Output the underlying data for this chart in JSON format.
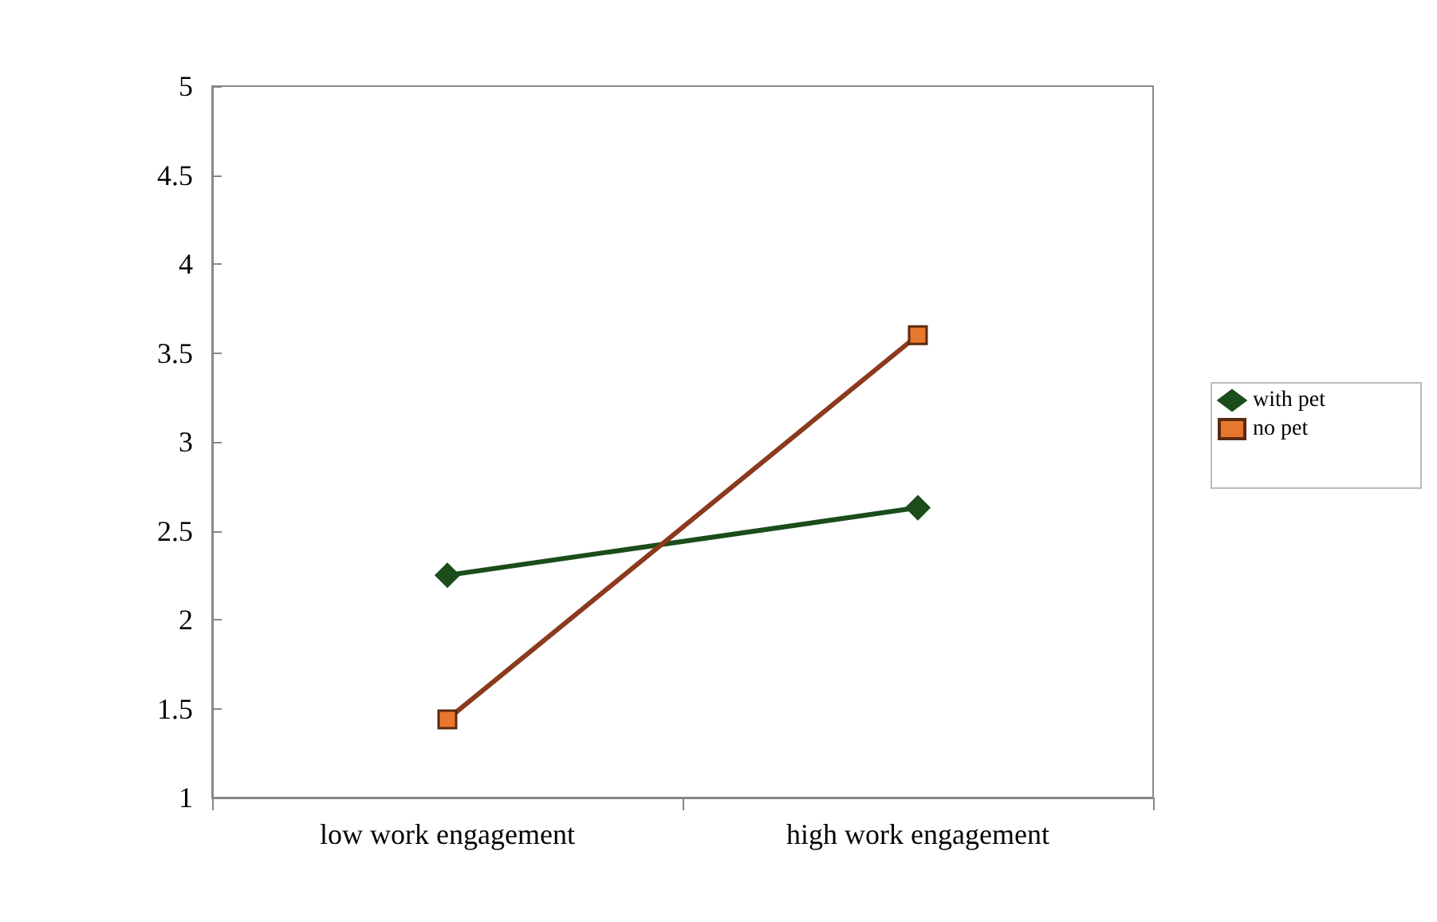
{
  "chart_data": {
    "type": "line",
    "categories": [
      "low work engagement",
      "high work engagement"
    ],
    "series": [
      {
        "name": "with pet",
        "color": "#1b4d1b",
        "marker": "diamond",
        "values": [
          2.25,
          2.63
        ]
      },
      {
        "name": "no pet",
        "color": "#8b3a1e",
        "marker": "square",
        "values": [
          1.44,
          3.6
        ]
      }
    ],
    "ylim": [
      1,
      5
    ],
    "yticks": [
      1,
      1.5,
      2,
      2.5,
      3,
      3.5,
      4,
      4.5,
      5
    ],
    "grid": false,
    "legend": "right"
  }
}
